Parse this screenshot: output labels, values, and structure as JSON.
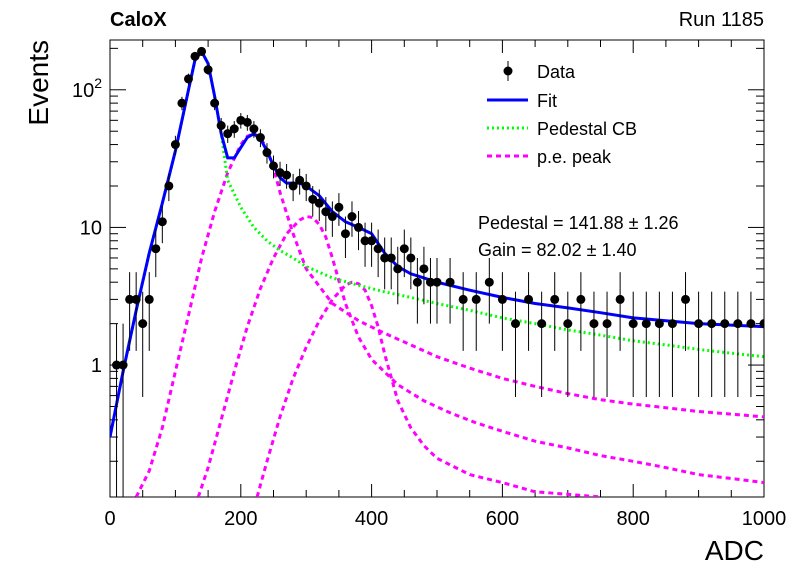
{
  "header": {
    "experiment": "CaloX",
    "run": "Run 1185"
  },
  "chart_data": {
    "type": "scatter",
    "title": "",
    "xlabel": "ADC",
    "ylabel": "Events",
    "xlim": [
      0,
      1000
    ],
    "ylim": [
      0.11,
      230
    ],
    "log_y": true,
    "x_ticks": [
      "0",
      "200",
      "400",
      "600",
      "800",
      "1000"
    ],
    "y_ticks": [
      {
        "value": 1,
        "label": "1"
      },
      {
        "value": 10,
        "label": "10"
      },
      {
        "value": 100,
        "label": "10^2"
      }
    ],
    "grid": false,
    "legend": {
      "placement": "top-right",
      "entries": [
        {
          "label": "Data",
          "style": "markers",
          "color": "#000000"
        },
        {
          "label": "Fit",
          "style": "solid",
          "color": "#0000ff"
        },
        {
          "label": "Pedestal CB",
          "style": "dotted",
          "color": "#00ff00"
        },
        {
          "label": "p.e. peak",
          "style": "dashed",
          "color": "#ff00ff"
        }
      ]
    },
    "annotations": [
      "Pedestal = 141.88 ± 1.26",
      "Gain = 82.02 ± 1.40"
    ],
    "fit_params": {
      "pedestal": 141.88,
      "pedestal_err": 1.26,
      "gain": 82.02,
      "gain_err": 1.4
    },
    "series": [
      {
        "name": "Data",
        "style": "markers",
        "color": "#000000",
        "x": [
          10,
          20,
          30,
          40,
          50,
          60,
          70,
          80,
          90,
          100,
          110,
          120,
          130,
          140,
          150,
          160,
          170,
          180,
          190,
          200,
          210,
          220,
          230,
          240,
          250,
          260,
          270,
          280,
          290,
          300,
          310,
          320,
          330,
          340,
          350,
          360,
          370,
          380,
          390,
          400,
          410,
          420,
          430,
          440,
          450,
          460,
          470,
          480,
          490,
          500,
          520,
          540,
          560,
          580,
          600,
          620,
          640,
          660,
          680,
          700,
          720,
          740,
          760,
          780,
          800,
          820,
          840,
          860,
          880,
          900,
          920,
          940,
          960,
          980,
          1000
        ],
        "y": [
          1,
          1,
          3,
          3,
          2,
          3,
          7,
          11,
          20,
          40,
          80,
          120,
          175,
          190,
          140,
          80,
          55,
          48,
          52,
          60,
          58,
          52,
          45,
          35,
          28,
          25,
          24,
          20,
          22,
          20,
          16,
          15,
          13,
          12,
          14,
          9,
          12,
          10,
          8,
          8,
          7,
          6,
          6,
          5,
          7,
          6,
          4,
          5,
          4,
          4,
          4,
          3,
          3,
          4,
          3,
          2,
          3,
          2,
          3,
          2,
          3,
          2,
          2,
          3,
          2,
          2,
          2,
          2,
          3,
          2,
          2,
          2,
          2,
          2,
          2
        ]
      },
      {
        "name": "Fit",
        "style": "solid",
        "color": "#0000ff",
        "x": [
          0,
          20,
          40,
          60,
          80,
          100,
          120,
          130,
          140,
          150,
          160,
          170,
          180,
          190,
          200,
          210,
          220,
          230,
          240,
          250,
          260,
          270,
          280,
          290,
          300,
          320,
          340,
          360,
          380,
          400,
          420,
          440,
          460,
          480,
          500,
          550,
          600,
          650,
          700,
          750,
          800,
          850,
          900,
          950,
          1000
        ],
        "y": [
          0.3,
          0.9,
          2.5,
          6.5,
          15,
          36,
          100,
          165,
          190,
          155,
          90,
          48,
          32,
          32,
          38,
          45,
          48,
          44,
          36,
          28,
          23,
          21,
          21,
          21,
          20,
          17,
          13,
          11,
          10,
          9,
          6.5,
          5.2,
          4.6,
          4.3,
          4,
          3.5,
          3.1,
          2.8,
          2.6,
          2.4,
          2.2,
          2.1,
          2,
          1.95,
          1.9
        ]
      },
      {
        "name": "Pedestal CB",
        "style": "dotted",
        "color": "#00ff00",
        "x": [
          0,
          20,
          40,
          60,
          80,
          100,
          120,
          130,
          140,
          150,
          160,
          170,
          180,
          200,
          220,
          240,
          260,
          280,
          300,
          340,
          380,
          420,
          460,
          500,
          550,
          600,
          650,
          700,
          750,
          800,
          850,
          900,
          950,
          1000
        ],
        "y": [
          0.3,
          0.9,
          2.5,
          6.5,
          15,
          36,
          100,
          165,
          190,
          155,
          90,
          48,
          22,
          14,
          10,
          8,
          6.8,
          6,
          5.2,
          4.3,
          3.8,
          3.4,
          3.1,
          2.8,
          2.5,
          2.2,
          2,
          1.8,
          1.65,
          1.5,
          1.4,
          1.3,
          1.22,
          1.15
        ]
      },
      {
        "name": "p.e. peak 1",
        "style": "dashed",
        "color": "#ff00ff",
        "x": [
          40,
          60,
          80,
          100,
          120,
          140,
          160,
          180,
          200,
          210,
          220,
          230,
          240,
          250,
          260,
          280,
          300,
          340,
          380,
          420,
          460,
          500,
          550,
          600,
          650,
          700,
          750,
          800,
          850,
          900,
          950,
          1000
        ],
        "y": [
          0.11,
          0.17,
          0.35,
          0.9,
          2.3,
          6,
          13,
          25,
          40,
          46,
          48,
          45,
          37,
          27,
          18,
          9,
          5,
          2.8,
          2.1,
          1.7,
          1.4,
          1.15,
          0.95,
          0.8,
          0.7,
          0.62,
          0.56,
          0.52,
          0.49,
          0.46,
          0.44,
          0.42
        ]
      },
      {
        "name": "p.e. peak 2",
        "style": "dashed",
        "color": "#ff00ff",
        "x": [
          135,
          150,
          170,
          190,
          210,
          230,
          250,
          270,
          290,
          300,
          310,
          320,
          330,
          340,
          360,
          380,
          400,
          440,
          480,
          520,
          560,
          600,
          650,
          700,
          750,
          800,
          850,
          900,
          950,
          1000
        ],
        "y": [
          0.11,
          0.18,
          0.4,
          0.9,
          1.9,
          3.6,
          6,
          9,
          11.3,
          12,
          11.8,
          10.5,
          8.5,
          6,
          2.8,
          1.6,
          1.1,
          0.72,
          0.55,
          0.45,
          0.38,
          0.33,
          0.28,
          0.25,
          0.22,
          0.2,
          0.18,
          0.16,
          0.15,
          0.14
        ]
      },
      {
        "name": "p.e. peak 3",
        "style": "dashed",
        "color": "#ff00ff",
        "x": [
          225,
          240,
          260,
          280,
          300,
          320,
          340,
          360,
          370,
          380,
          390,
          400,
          410,
          420,
          440,
          460,
          480,
          500,
          550,
          600,
          650,
          700,
          750
        ],
        "y": [
          0.11,
          0.2,
          0.42,
          0.8,
          1.35,
          2.1,
          3,
          3.8,
          4,
          3.9,
          3.5,
          2.7,
          1.9,
          1.2,
          0.55,
          0.35,
          0.26,
          0.21,
          0.16,
          0.14,
          0.12,
          0.115,
          0.11
        ]
      }
    ]
  }
}
